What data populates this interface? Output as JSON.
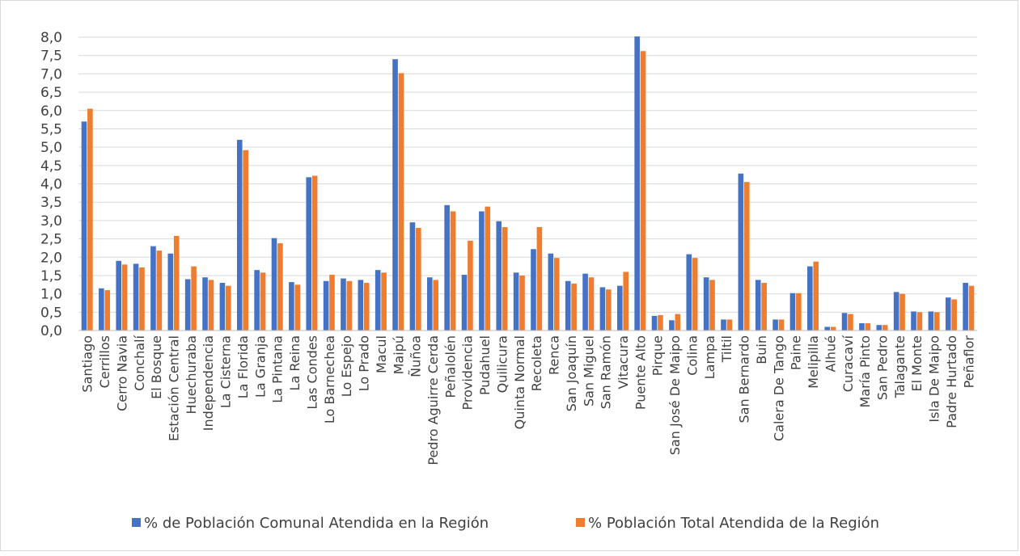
{
  "chart_data": {
    "type": "bar",
    "title": "",
    "xlabel": "",
    "ylabel": "",
    "ylim": [
      0,
      8
    ],
    "ytick_step": 0.5,
    "ytick_labels": [
      "0,0",
      "0,5",
      "1,0",
      "1,5",
      "2,0",
      "2,5",
      "3,0",
      "3,5",
      "4,0",
      "4,5",
      "5,0",
      "5,5",
      "6,0",
      "6,5",
      "7,0",
      "7,5",
      "8,0"
    ],
    "grid": true,
    "legend_position": "bottom",
    "categories": [
      "Santiago",
      "Cerrillos",
      "Cerro Navia",
      "Conchalí",
      "El Bosque",
      "Estación Central",
      "Huechuraba",
      "Independencia",
      "La Cisterna",
      "La Florida",
      "La Granja",
      "La Pintana",
      "La Reina",
      "Las Condes",
      "Lo Barnechea",
      "Lo Espejo",
      "Lo Prado",
      "Macul",
      "Maipú",
      "Ñuñoa",
      "Pedro Aguirre Cerda",
      "Peñalolén",
      "Providencia",
      "Pudahuel",
      "Quilicura",
      "Quinta Normal",
      "Recoleta",
      "Renca",
      "San Joaquín",
      "San Miguel",
      "San Ramón",
      "Vitacura",
      "Puente Alto",
      "Pirque",
      "San José De Maipo",
      "Colina",
      "Lampa",
      "Tiltil",
      "San Bernardo",
      "Buin",
      "Calera De Tango",
      "Paine",
      "Melipilla",
      "Alhué",
      "Curacaví",
      "María Pinto",
      "San Pedro",
      "Talagante",
      "El Monte",
      "Isla De Maipo",
      "Padre Hurtado",
      "Peñaflor"
    ],
    "series": [
      {
        "name": "% de Población Comunal Atendida en la Región",
        "color": "#4472C4",
        "values": [
          5.7,
          1.15,
          1.9,
          1.82,
          2.3,
          2.1,
          1.4,
          1.45,
          1.3,
          5.2,
          1.65,
          2.52,
          1.32,
          4.18,
          1.35,
          1.42,
          1.38,
          1.65,
          7.4,
          2.95,
          1.45,
          3.42,
          1.52,
          3.25,
          2.98,
          1.58,
          2.22,
          2.1,
          1.35,
          1.55,
          1.18,
          1.22,
          8.02,
          0.4,
          0.28,
          2.08,
          1.45,
          0.3,
          4.28,
          1.38,
          0.3,
          1.02,
          1.75,
          0.1,
          0.48,
          0.2,
          0.15,
          1.05,
          0.52,
          0.52,
          0.9,
          1.3
        ]
      },
      {
        "name": "% Población Total Atendida de la Región",
        "color": "#ED7D31",
        "values": [
          6.05,
          1.1,
          1.8,
          1.72,
          2.18,
          2.58,
          1.75,
          1.38,
          1.22,
          4.92,
          1.58,
          2.38,
          1.25,
          4.22,
          1.52,
          1.35,
          1.3,
          1.58,
          7.02,
          2.8,
          1.38,
          3.25,
          2.45,
          3.38,
          2.82,
          1.5,
          2.82,
          1.98,
          1.28,
          1.45,
          1.12,
          1.6,
          7.62,
          0.42,
          0.45,
          1.98,
          1.38,
          0.3,
          4.05,
          1.3,
          0.3,
          1.02,
          1.88,
          0.1,
          0.45,
          0.2,
          0.15,
          1.0,
          0.5,
          0.5,
          0.85,
          1.22
        ]
      }
    ]
  }
}
